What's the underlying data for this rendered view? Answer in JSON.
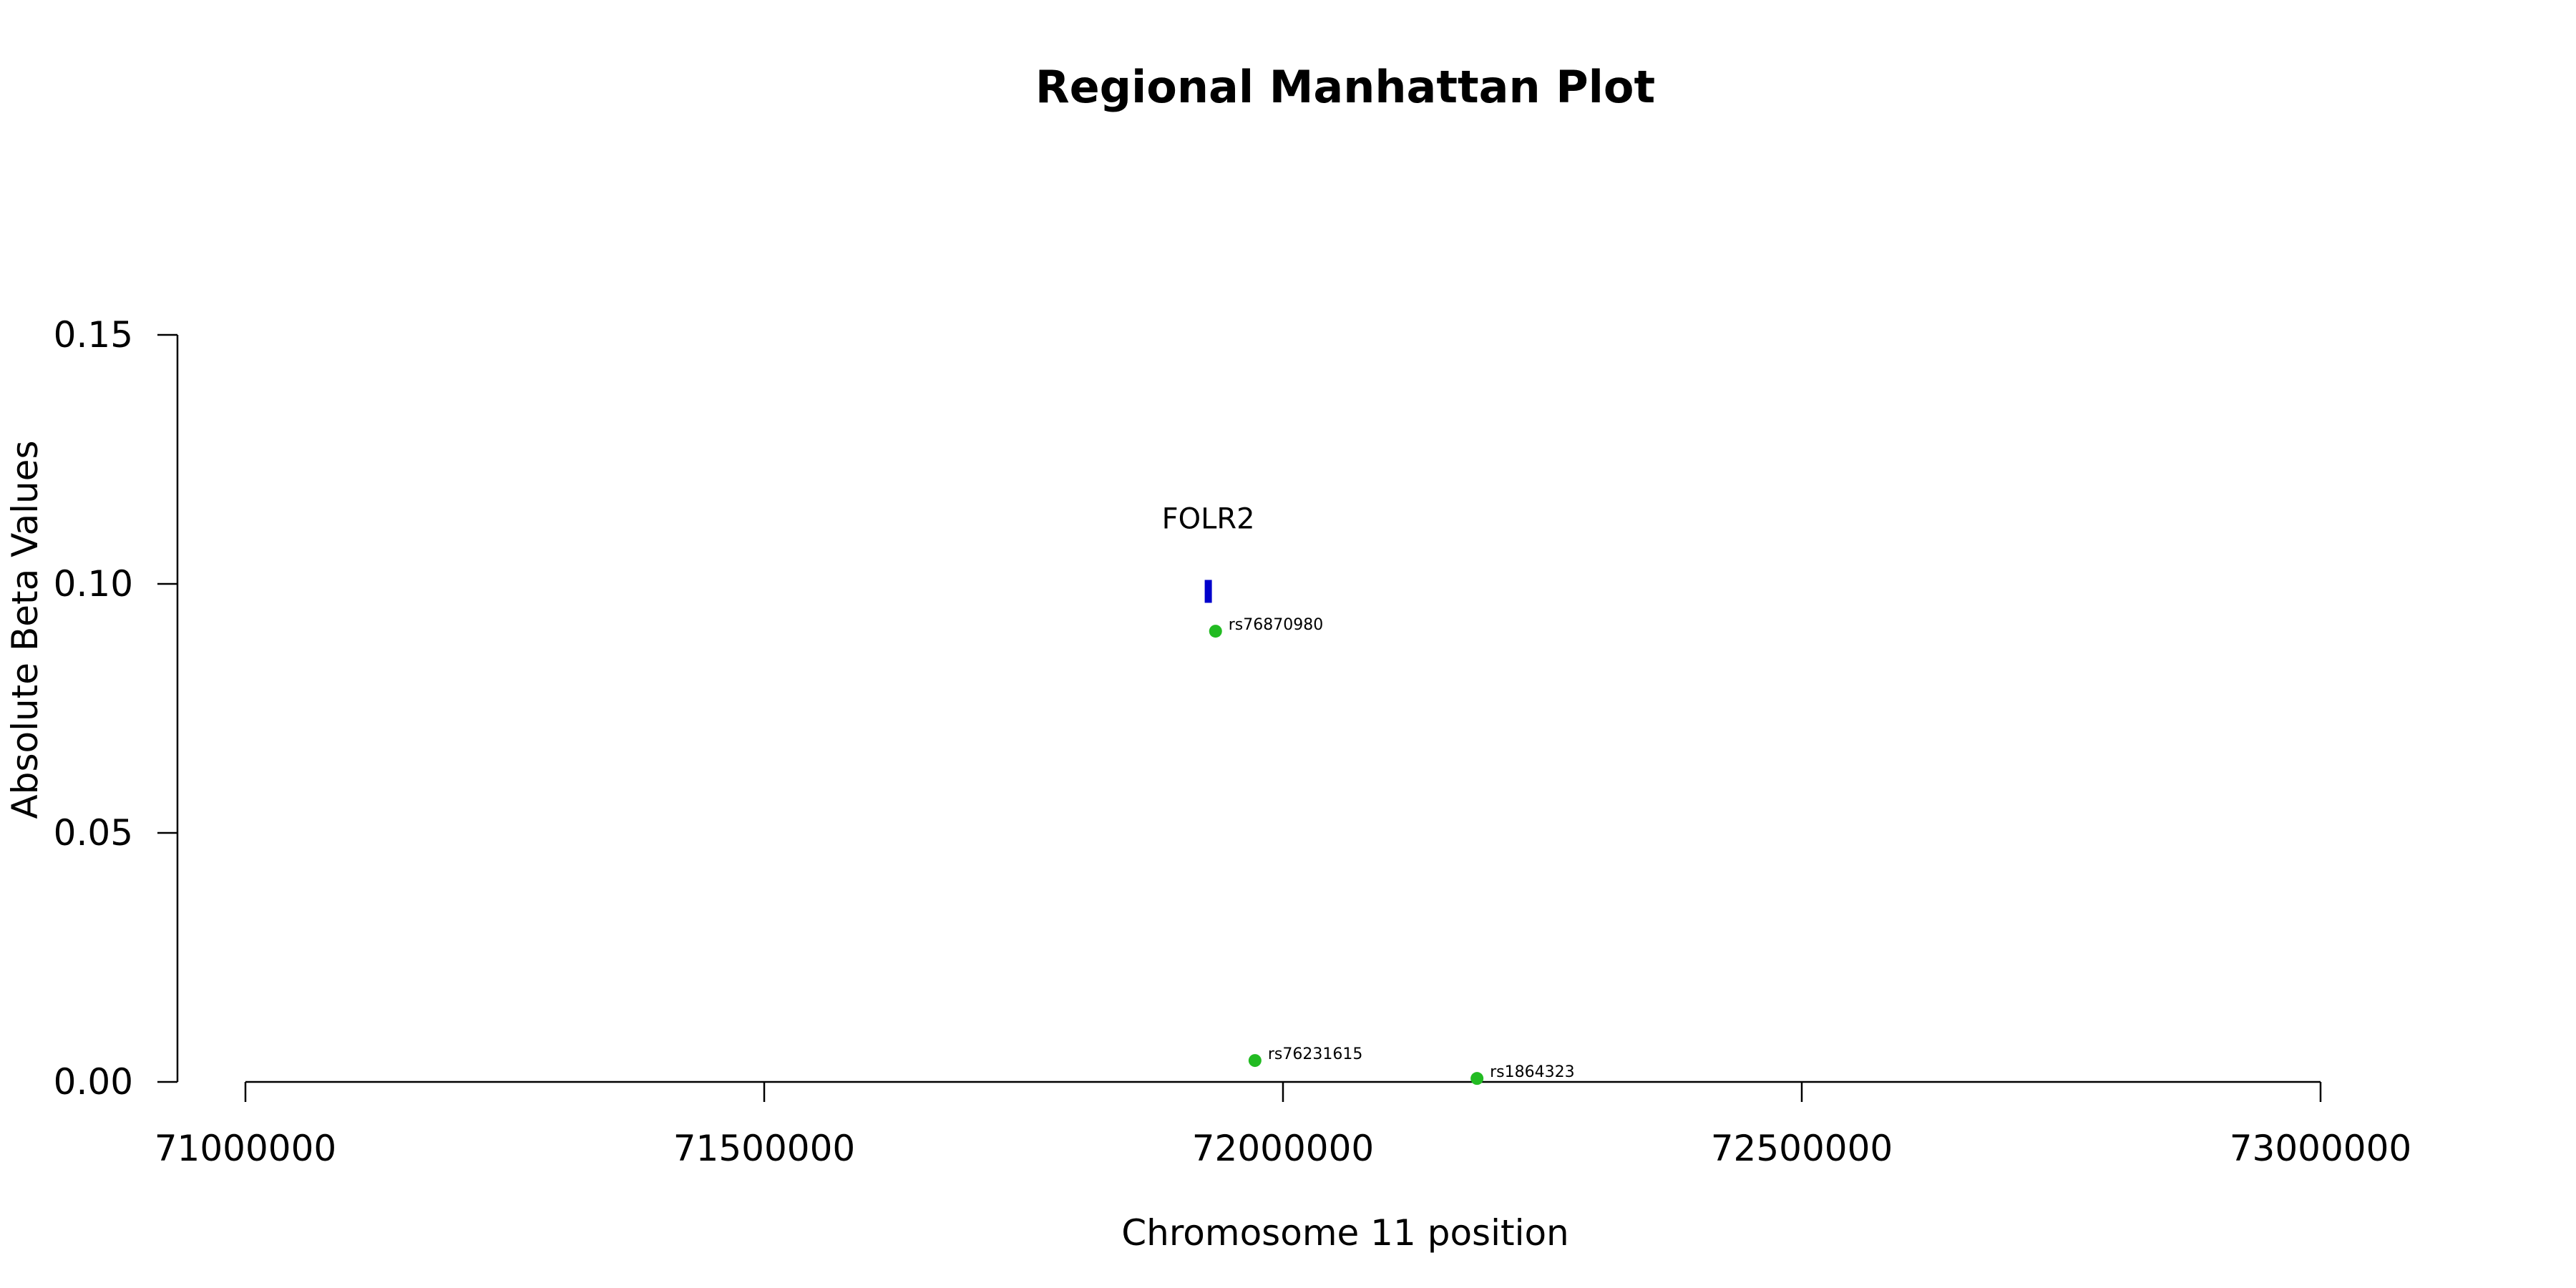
{
  "chart_data": {
    "type": "scatter",
    "title": "Regional Manhattan Plot",
    "xlabel": "Chromosome 11 position",
    "ylabel": "Absolute Beta Values",
    "xlim": [
      71000000,
      73000000
    ],
    "ylim": [
      0,
      0.15
    ],
    "x_ticks": [
      71000000,
      71500000,
      72000000,
      72500000,
      73000000
    ],
    "x_tick_labels": [
      "71000000",
      "71500000",
      "72000000",
      "72500000",
      "73000000"
    ],
    "y_ticks": [
      0,
      0.05,
      0.1,
      0.15
    ],
    "y_tick_labels": [
      "0.00",
      "0.05",
      "0.10",
      "0.15"
    ],
    "grid": false,
    "points": [
      {
        "label": "rs76870980",
        "x": 71935000,
        "y": 0.0905
      },
      {
        "label": "rs76231615",
        "x": 71973000,
        "y": 0.0043
      },
      {
        "label": "rs1864323",
        "x": 72187000,
        "y": 0.0007
      }
    ],
    "genes": [
      {
        "name": "FOLR2",
        "x": 71928000,
        "y": 0.0985
      }
    ],
    "colors": {
      "point": "#22bb22",
      "gene": "#0000cc"
    }
  }
}
